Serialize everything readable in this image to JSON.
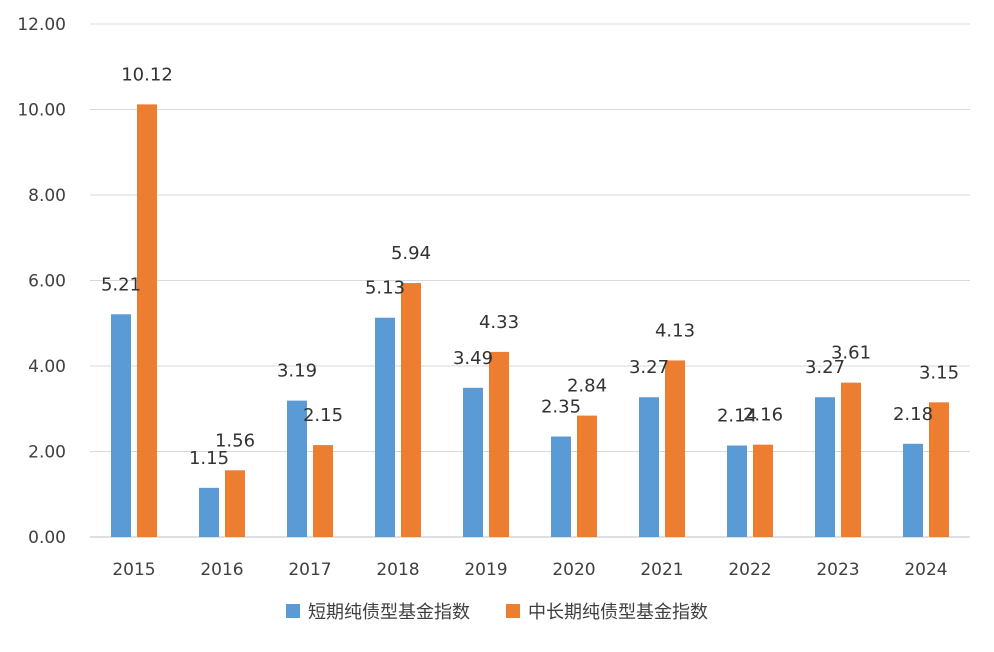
{
  "chart_data": {
    "type": "bar",
    "categories": [
      "2015",
      "2016",
      "2017",
      "2018",
      "2019",
      "2020",
      "2021",
      "2022",
      "2023",
      "2024"
    ],
    "series": [
      {
        "name": "短期纯债型基金指数",
        "color": "#5b9bd5",
        "values": [
          5.21,
          1.15,
          3.19,
          5.13,
          3.49,
          2.35,
          3.27,
          2.14,
          3.27,
          2.18
        ],
        "labels": [
          "5.21",
          "1.15",
          "3.19",
          "5.13",
          "3.49",
          "2.35",
          "3.27",
          "2.14",
          "3.27",
          "2.18"
        ]
      },
      {
        "name": "中长期纯债型基金指数",
        "color": "#ed7d31",
        "values": [
          10.12,
          1.56,
          2.15,
          5.94,
          4.33,
          2.84,
          4.13,
          2.16,
          3.61,
          3.15
        ],
        "labels": [
          "10.12",
          "1.56",
          "2.15",
          "5.94",
          "4.33",
          "2.84",
          "4.13",
          "2.16",
          "3.61",
          "3.15"
        ]
      }
    ],
    "ylim": [
      0,
      12
    ],
    "yticks": [
      "0.00",
      "2.00",
      "4.00",
      "6.00",
      "8.00",
      "10.00",
      "12.00"
    ],
    "grid": true,
    "legend_position": "bottom"
  }
}
